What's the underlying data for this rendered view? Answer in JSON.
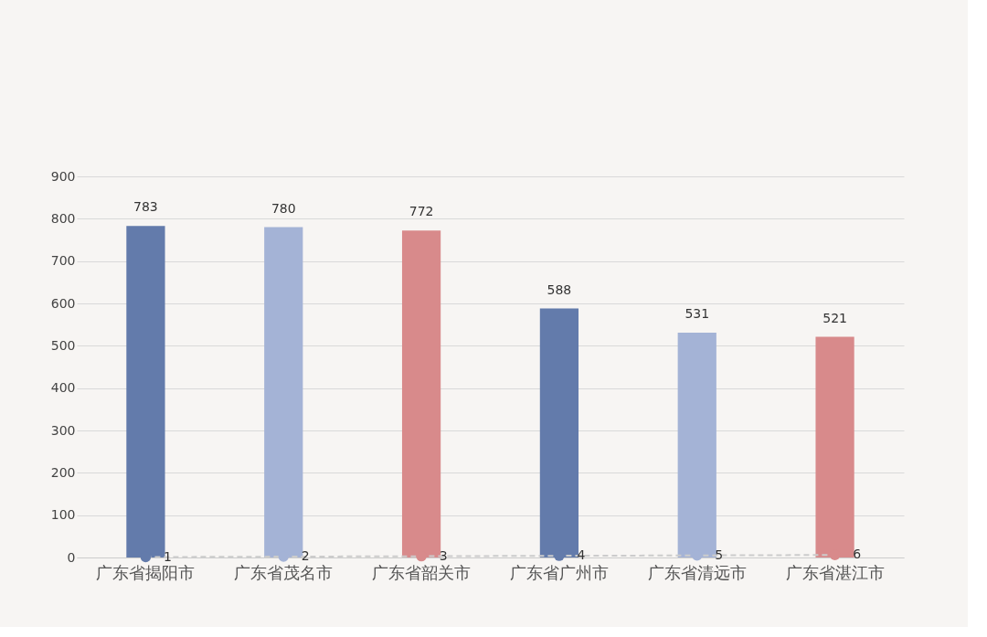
{
  "chart_data": {
    "type": "bar",
    "categories": [
      "广东省揭阳市",
      "广东省茂名市",
      "广东省韶关市",
      "广东省广州市",
      "广东省清远市",
      "广东省湛江市"
    ],
    "series": [
      {
        "colors": [
          "#637bab",
          "#a4b3d6",
          "#d88a8b",
          "#637bab",
          "#a4b3d6",
          "#d88a8b"
        ],
        "values": [
          783,
          780,
          772,
          588,
          531,
          521
        ]
      },
      {
        "type": "line",
        "color": "#cccccc",
        "line_style": "dashed",
        "marker": "circle",
        "colors": [
          "#637bab",
          "#a4b3d6",
          "#d88a8b",
          "#637bab",
          "#a4b3d6",
          "#d88a8b"
        ],
        "values": [
          1,
          2,
          3,
          4,
          5,
          6
        ]
      }
    ],
    "ylim": [
      0,
      900
    ],
    "yticks": [
      0,
      100,
      200,
      300,
      400,
      500,
      600,
      700,
      800,
      900
    ],
    "grid": "y",
    "data_labels": true
  }
}
